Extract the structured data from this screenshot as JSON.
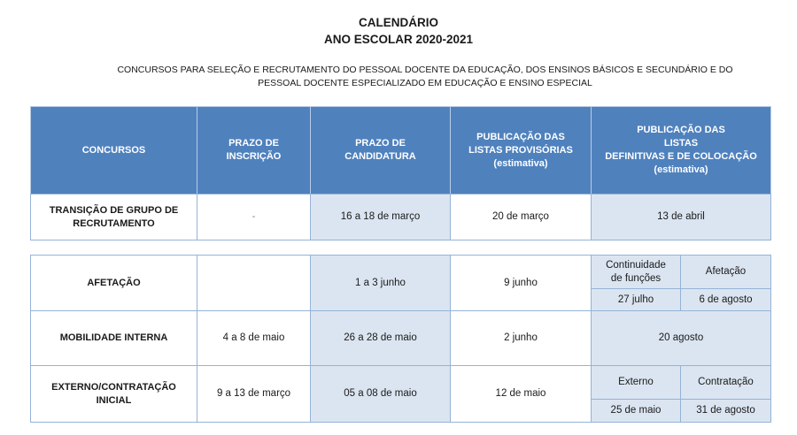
{
  "title": "CALENDÁRIO",
  "subtitle": "ANO ESCOLAR 2020-2021",
  "description_line1": "CONCURSOS PARA SELEÇÃO E RECRUTAMENTO DO PESSOAL DOCENTE DA EDUCAÇÃO, DOS ENSINOS BÁSICOS E SECUNDÁRIO E DO",
  "description_line2": "PESSOAL DOCENTE ESPECIALIZADO EM EDUCAÇÃO E ENSINO ESPECIAL",
  "headers": {
    "concursos": "CONCURSOS",
    "inscricao_1": "PRAZO DE",
    "inscricao_2": "INSCRIÇÃO",
    "candidatura_1": "PRAZO DE",
    "candidatura_2": "CANDIDATURA",
    "provisorias_1": "PUBLICAÇÃO DAS",
    "provisorias_2": "LISTAS PROVISÓRIAS",
    "provisorias_3": "(estimativa)",
    "definitivas_1": "PUBLICAÇÃO DAS",
    "definitivas_2": "LISTAS",
    "definitivas_3": "DEFINITIVAS E DE COLOCAÇÃO",
    "definitivas_4": "(estimativa)"
  },
  "rows": {
    "transicao": {
      "name_1": "TRANSIÇÃO DE GRUPO DE",
      "name_2": "RECRUTAMENTO",
      "inscricao": "-",
      "candidatura": "16 a 18 de março",
      "provisorias": "20 de março",
      "definitivas": "13 de abril"
    },
    "afetacao": {
      "name": "AFETAÇÃO",
      "inscricao": "",
      "candidatura": "1 a 3 junho",
      "provisorias": "9 junho",
      "sub_a_label_1": "Continuidade",
      "sub_a_label_2": "de funções",
      "sub_a_value": "27 julho",
      "sub_b_label": "Afetação",
      "sub_b_value": "6 de agosto"
    },
    "mobilidade": {
      "name": "MOBILIDADE INTERNA",
      "inscricao": "4 a 8 de maio",
      "candidatura": "26 a 28 de maio",
      "provisorias": "2 junho",
      "definitivas": "20 agosto"
    },
    "externo": {
      "name_1": "EXTERNO/CONTRATAÇÃO",
      "name_2": "INICIAL",
      "inscricao": "9 a 13 de março",
      "candidatura": "05 a 08 de maio",
      "provisorias": "12 de maio",
      "sub_a_label": "Externo",
      "sub_a_value": "25 de maio",
      "sub_b_label": "Contratação",
      "sub_b_value": "31 de agosto"
    }
  },
  "colors": {
    "header": "#4f81bd",
    "shaded": "#dbe5f1",
    "border": "#95b3d7"
  }
}
